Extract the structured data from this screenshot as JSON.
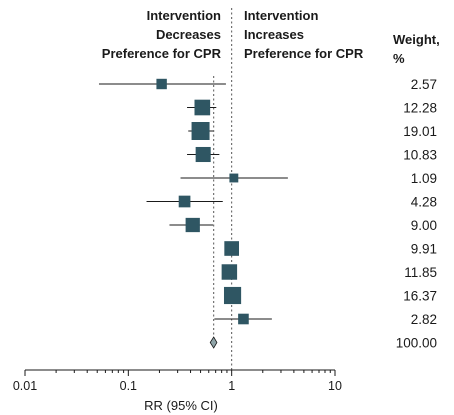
{
  "chart_data": {
    "type": "forest",
    "headers": {
      "left": [
        "Intervention",
        "Decreases",
        "Preference for CPR"
      ],
      "right": [
        "Intervention",
        "Increases",
        "Preference for CPR"
      ],
      "weight": [
        "Weight,",
        "%"
      ]
    },
    "xlabel": "RR (95% CI)",
    "x_scale": "log",
    "xlim": [
      0.01,
      10
    ],
    "xticks": [
      0.01,
      0.1,
      1,
      10
    ],
    "xtick_labels": [
      "0.01",
      "0.1",
      "1",
      "10"
    ],
    "reference_line": 1,
    "pooled_line": 0.67,
    "studies": [
      {
        "rr": 0.21,
        "lo": 0.052,
        "hi": 0.88,
        "weight": "2.57"
      },
      {
        "rr": 0.52,
        "lo": 0.37,
        "hi": 0.71,
        "weight": "12.28"
      },
      {
        "rr": 0.5,
        "lo": 0.38,
        "hi": 0.66,
        "weight": "19.01"
      },
      {
        "rr": 0.53,
        "lo": 0.37,
        "hi": 0.76,
        "weight": "10.83"
      },
      {
        "rr": 1.05,
        "lo": 0.32,
        "hi": 3.5,
        "weight": "1.09"
      },
      {
        "rr": 0.35,
        "lo": 0.15,
        "hi": 0.82,
        "weight": "4.28"
      },
      {
        "rr": 0.42,
        "lo": 0.25,
        "hi": 0.66,
        "weight": "9.00"
      },
      {
        "rr": 1.0,
        "lo": 0.87,
        "hi": 1.15,
        "weight": "9.91"
      },
      {
        "rr": 0.95,
        "lo": 0.83,
        "hi": 1.09,
        "weight": "11.85"
      },
      {
        "rr": 1.02,
        "lo": 0.85,
        "hi": 1.22,
        "weight": "16.37"
      },
      {
        "rr": 1.3,
        "lo": 0.68,
        "hi": 2.45,
        "weight": "2.82"
      }
    ],
    "pooled": {
      "rr": 0.67,
      "lo": 0.62,
      "hi": 0.72,
      "weight": "100.00"
    }
  }
}
